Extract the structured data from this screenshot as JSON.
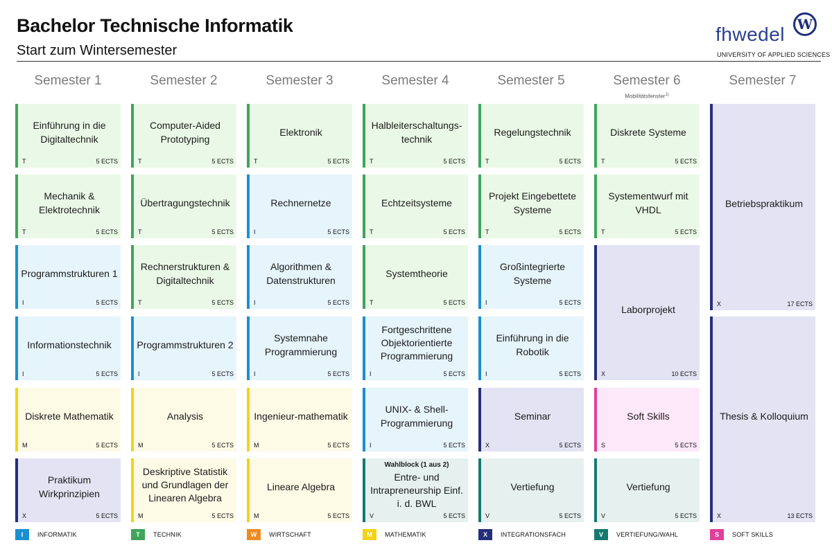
{
  "header": {
    "title": "Bachelor Technische Informatik",
    "subtitle": "Start zum Wintersemester"
  },
  "logo": {
    "text": "fhwedel",
    "emblem": "W",
    "tagline": "UNIVERSITY OF APPLIED SCIENCES"
  },
  "semesters": [
    {
      "label": "Semester 1",
      "note": ""
    },
    {
      "label": "Semester 2",
      "note": ""
    },
    {
      "label": "Semester 3",
      "note": ""
    },
    {
      "label": "Semester 4",
      "note": ""
    },
    {
      "label": "Semester 5",
      "note": ""
    },
    {
      "label": "Semester 6",
      "note": "Mobilitätsfenster",
      "note_sup": "1)"
    },
    {
      "label": "Semester 7",
      "note": ""
    }
  ],
  "modules": {
    "s1": [
      {
        "name": "Einführung in die Digitaltechnik",
        "code": "T",
        "ects": "5 ECTS"
      },
      {
        "name": "Mechanik & Elektrotechnik",
        "code": "T",
        "ects": "5 ECTS"
      },
      {
        "name": "Programmstrukturen 1",
        "code": "I",
        "ects": "5 ECTS"
      },
      {
        "name": "Informationstechnik",
        "code": "I",
        "ects": "5 ECTS"
      },
      {
        "name": "Diskrete Mathematik",
        "code": "M",
        "ects": "5 ECTS"
      },
      {
        "name": "Praktikum Wirkprinzipien",
        "code": "X",
        "ects": "5 ECTS"
      }
    ],
    "s2": [
      {
        "name": "Computer-Aided Prototyping",
        "code": "T",
        "ects": "5 ECTS"
      },
      {
        "name": "Übertragungstechnik",
        "code": "T",
        "ects": "5 ECTS"
      },
      {
        "name": "Rechnerstrukturen & Digitaltechnik",
        "code": "T",
        "ects": "5 ECTS"
      },
      {
        "name": "Programmstrukturen 2",
        "code": "I",
        "ects": "5 ECTS"
      },
      {
        "name": "Analysis",
        "code": "M",
        "ects": "5 ECTS"
      },
      {
        "name": "Deskriptive Statistik und Grundlagen der Linearen Algebra",
        "code": "M",
        "ects": "5 ECTS"
      }
    ],
    "s3": [
      {
        "name": "Elektronik",
        "code": "T",
        "ects": "5 ECTS"
      },
      {
        "name": "Rechnernetze",
        "code": "I",
        "ects": "5 ECTS"
      },
      {
        "name": "Algorithmen & Datenstrukturen",
        "code": "I",
        "ects": "5 ECTS"
      },
      {
        "name": "Systemnahe Programmierung",
        "code": "I",
        "ects": "5 ECTS"
      },
      {
        "name": "Ingenieur-mathematik",
        "code": "M",
        "ects": "5 ECTS"
      },
      {
        "name": "Lineare Algebra",
        "code": "M",
        "ects": "5 ECTS"
      }
    ],
    "s4": [
      {
        "name": "Halbleiterschaltungs-technik",
        "code": "T",
        "ects": "5 ECTS"
      },
      {
        "name": "Echtzeitsysteme",
        "code": "T",
        "ects": "5 ECTS"
      },
      {
        "name": "Systemtheorie",
        "code": "T",
        "ects": "5 ECTS"
      },
      {
        "name": "Fortgeschrittene Objektorientierte Programmierung",
        "code": "I",
        "ects": "5 ECTS"
      },
      {
        "name": "UNIX- & Shell-Programmierung",
        "code": "I",
        "ects": "5 ECTS"
      },
      {
        "name": "Entre- und Intrapreneurship Einf. i. d. BWL",
        "heading": "Wahlblock (1 aus 2)",
        "code": "V",
        "ects": "5 ECTS"
      }
    ],
    "s5": [
      {
        "name": "Regelungstechnik",
        "code": "T",
        "ects": "5 ECTS"
      },
      {
        "name": "Projekt Eingebettete Systeme",
        "code": "T",
        "ects": "5 ECTS"
      },
      {
        "name": "Großintegrierte Systeme",
        "code": "I",
        "ects": "5 ECTS"
      },
      {
        "name": "Einführung in die Robotik",
        "code": "I",
        "ects": "5 ECTS"
      },
      {
        "name": "Seminar",
        "code": "X",
        "ects": "5 ECTS"
      },
      {
        "name": "Vertiefung",
        "code": "V",
        "ects": "5 ECTS"
      }
    ],
    "s6": [
      {
        "name": "Diskrete Systeme",
        "code": "T",
        "ects": "5 ECTS"
      },
      {
        "name": "Systementwurf mit VHDL",
        "code": "T",
        "ects": "5 ECTS"
      },
      {
        "name": "Laborprojekt",
        "code": "X",
        "ects": "10 ECTS"
      },
      {
        "name": "Soft Skills",
        "code": "S",
        "ects": "5 ECTS"
      },
      {
        "name": "Vertiefung",
        "code": "V",
        "ects": "5 ECTS"
      }
    ],
    "s7": [
      {
        "name": "Betriebspraktikum",
        "code": "X",
        "ects": "17 ECTS"
      },
      {
        "name": "Thesis & Kolloquium",
        "code": "X",
        "ects": "13 ECTS"
      }
    ]
  },
  "legend": [
    {
      "code": "I",
      "label": "INFORMATIK",
      "color": "#1b8fd2"
    },
    {
      "code": "T",
      "label": "TECHNIK",
      "color": "#3fa55a"
    },
    {
      "code": "W",
      "label": "WIRTSCHAFT",
      "color": "#ee8a22"
    },
    {
      "code": "M",
      "label": "MATHEMATIK",
      "color": "#f2d31a"
    },
    {
      "code": "X",
      "label": "INTEGRATIONSFACH",
      "color": "#262f7a"
    },
    {
      "code": "V",
      "label": "VERTIEFUNG/WAHL",
      "color": "#157a70"
    },
    {
      "code": "S",
      "label": "SOFT SKILLS",
      "color": "#e0409a"
    }
  ]
}
